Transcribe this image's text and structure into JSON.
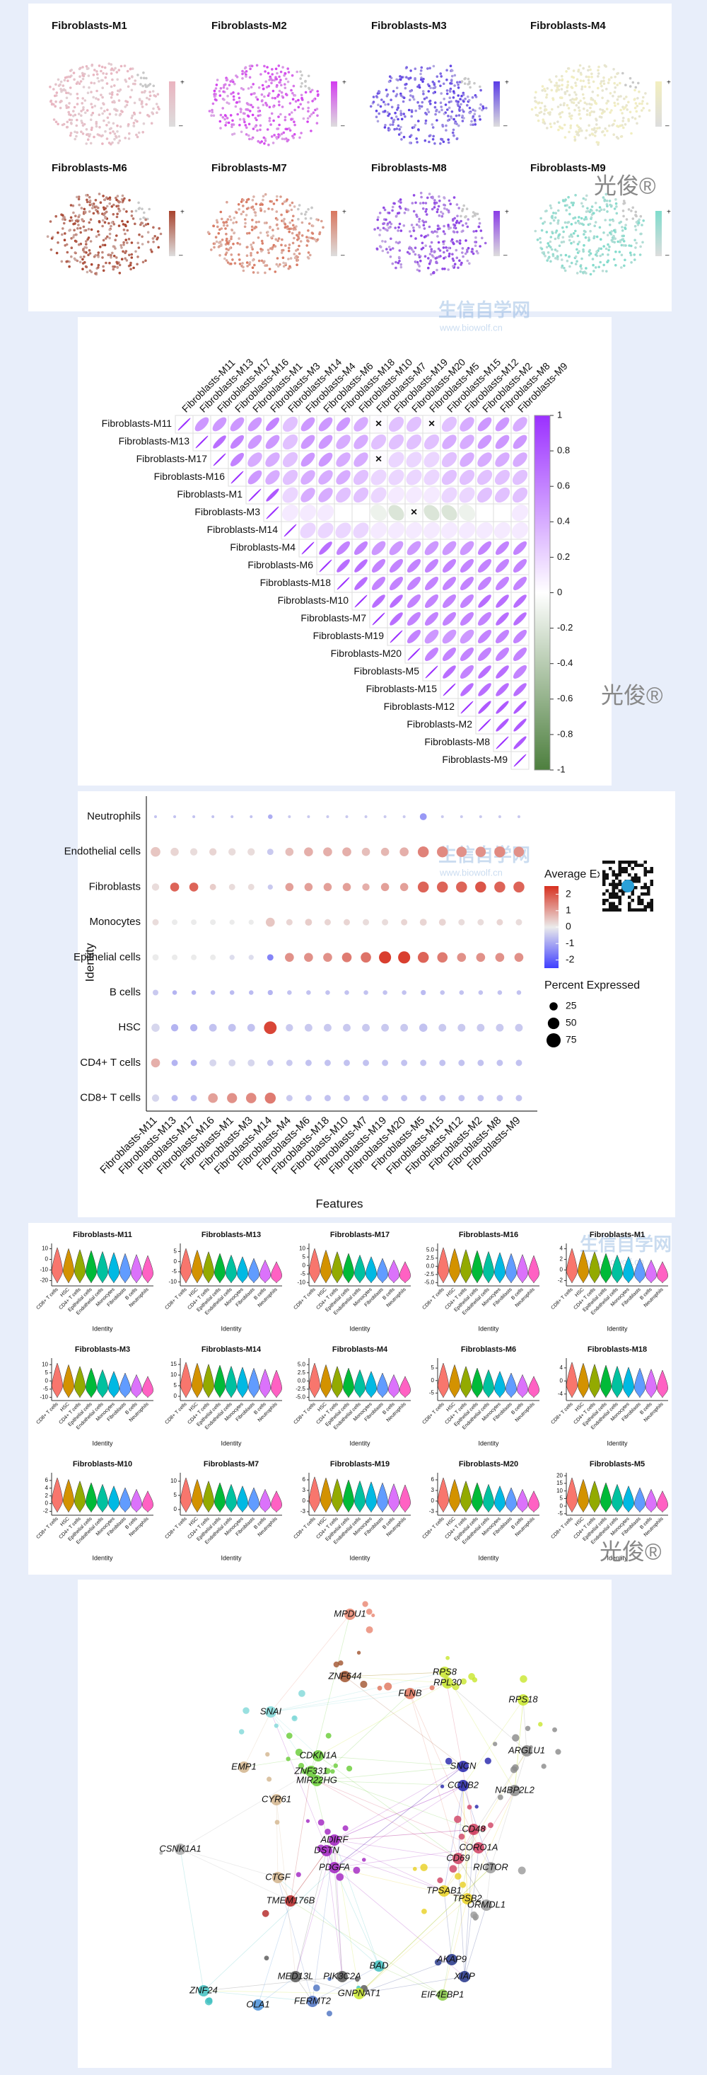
{
  "tsne": {
    "titles": [
      "Fibroblasts-M1",
      "Fibroblasts-M2",
      "Fibroblasts-M3",
      "Fibroblasts-M4",
      "Fibroblasts-M6",
      "Fibroblasts-M7",
      "Fibroblasts-M8",
      "Fibroblasts-M9"
    ],
    "colors": [
      "#eab3bf",
      "#d33cf0",
      "#5a3ce6",
      "#f3efbf",
      "#a8432e",
      "#d9765e",
      "#8a3ce6",
      "#7fdccc"
    ],
    "plus": "+",
    "minus": "–"
  },
  "correlation": {
    "labels": [
      "Fibroblasts-M11",
      "Fibroblasts-M13",
      "Fibroblasts-M17",
      "Fibroblasts-M16",
      "Fibroblasts-M1",
      "Fibroblasts-M3",
      "Fibroblasts-M14",
      "Fibroblasts-M4",
      "Fibroblasts-M6",
      "Fibroblasts-M18",
      "Fibroblasts-M10",
      "Fibroblasts-M7",
      "Fibroblasts-M19",
      "Fibroblasts-M20",
      "Fibroblasts-M5",
      "Fibroblasts-M15",
      "Fibroblasts-M12",
      "Fibroblasts-M2",
      "Fibroblasts-M8",
      "Fibroblasts-M9"
    ],
    "values": [
      [
        1,
        0.5,
        0.5,
        0.5,
        0.5,
        0.6,
        0.3,
        0.5,
        0.5,
        0.5,
        0.4,
        0.02,
        0.3,
        0.3,
        0.02,
        0.3,
        0.4,
        0.5,
        0.5,
        0.4
      ],
      [
        1,
        0.7,
        0.6,
        0.5,
        0.5,
        0.3,
        0.5,
        0.5,
        0.4,
        0.4,
        0.3,
        0.3,
        0.3,
        0.3,
        0.4,
        0.4,
        0.5,
        0.5,
        0.5
      ],
      [
        1,
        0.6,
        0.4,
        0.4,
        0.3,
        0.5,
        0.5,
        0.4,
        0.4,
        0.02,
        0.2,
        0.2,
        0.2,
        0.3,
        0.4,
        0.4,
        0.4,
        0.4
      ],
      [
        1,
        0.5,
        0.4,
        0.3,
        0.4,
        0.4,
        0.4,
        0.3,
        0.2,
        0.2,
        0.2,
        0.2,
        0.3,
        0.3,
        0.3,
        0.3,
        0.3
      ],
      [
        1,
        0.8,
        0.2,
        0.4,
        0.4,
        0.3,
        0.3,
        0.2,
        0.1,
        0.1,
        0.1,
        0.2,
        0.2,
        0.3,
        0.3,
        0.3
      ],
      [
        1,
        0.1,
        0.1,
        0.1,
        0,
        0,
        -0.1,
        -0.2,
        -0.02,
        -0.2,
        -0.2,
        -0.1,
        0,
        0,
        0.1
      ],
      [
        1,
        0.2,
        0.2,
        0.2,
        0.2,
        0.1,
        0.1,
        0.1,
        0.1,
        0.1,
        0.1,
        0.1,
        0.1,
        0.1
      ],
      [
        1,
        0.7,
        0.6,
        0.6,
        0.5,
        0.5,
        0.5,
        0.5,
        0.5,
        0.5,
        0.6,
        0.6,
        0.6
      ],
      [
        1,
        0.7,
        0.7,
        0.6,
        0.6,
        0.6,
        0.6,
        0.6,
        0.6,
        0.6,
        0.6,
        0.6
      ],
      [
        1,
        0.7,
        0.6,
        0.6,
        0.6,
        0.6,
        0.6,
        0.6,
        0.6,
        0.6,
        0.6
      ],
      [
        1,
        0.7,
        0.7,
        0.6,
        0.6,
        0.6,
        0.6,
        0.7,
        0.7,
        0.7
      ],
      [
        1,
        0.7,
        0.6,
        0.6,
        0.6,
        0.6,
        0.6,
        0.7,
        0.7
      ],
      [
        1,
        0.6,
        0.5,
        0.5,
        0.5,
        0.6,
        0.6,
        0.6
      ],
      [
        1,
        0.6,
        0.6,
        0.6,
        0.6,
        0.6,
        0.6
      ],
      [
        1,
        0.7,
        0.6,
        0.7,
        0.7,
        0.6
      ],
      [
        1,
        0.7,
        0.7,
        0.7,
        0.7
      ],
      [
        1,
        0.8,
        0.8,
        0.8
      ],
      [
        1,
        0.8,
        0.8
      ],
      [
        1,
        0.8
      ],
      [
        1
      ]
    ],
    "insignificant": [
      [
        0,
        11
      ],
      [
        0,
        14
      ],
      [
        2,
        11
      ],
      [
        5,
        13
      ]
    ],
    "cross": "×",
    "positive_color": "#9b30ff",
    "negative_color": "#4d7f3e",
    "colorbar_lim": [
      -1,
      1
    ],
    "colorbar_ticks": [
      1,
      0.8,
      0.6,
      0.4,
      0.2,
      0,
      -0.2,
      -0.4,
      -0.6,
      -0.8,
      -1
    ]
  },
  "dotplot": {
    "rows": [
      "Neutrophils",
      "Endothelial cells",
      "Fibroblasts",
      "Monocytes",
      "Epithelial cells",
      "B cells",
      "HSC",
      "CD4+ T cells",
      "CD8+ T cells"
    ],
    "features": [
      "Fibroblasts-M11",
      "Fibroblasts-M13",
      "Fibroblasts-M17",
      "Fibroblasts-M16",
      "Fibroblasts-M1",
      "Fibroblasts-M3",
      "Fibroblasts-M14",
      "Fibroblasts-M4",
      "Fibroblasts-M6",
      "Fibroblasts-M18",
      "Fibroblasts-M10",
      "Fibroblasts-M7",
      "Fibroblasts-M19",
      "Fibroblasts-M20",
      "Fibroblasts-M5",
      "Fibroblasts-M15",
      "Fibroblasts-M12",
      "Fibroblasts-M2",
      "Fibroblasts-M8",
      "Fibroblasts-M9"
    ],
    "avg": [
      [
        -0.6,
        -0.6,
        -0.6,
        -0.6,
        -0.6,
        -0.6,
        -0.9,
        -0.5,
        -0.5,
        -0.5,
        -0.5,
        -0.5,
        -0.5,
        -0.5,
        -1.2,
        -0.5,
        -0.5,
        -0.5,
        -0.5,
        -0.5
      ],
      [
        0.5,
        0.3,
        0.2,
        0.3,
        0.2,
        0.2,
        -0.5,
        0.6,
        0.8,
        0.8,
        0.8,
        0.6,
        0.7,
        0.8,
        1.4,
        1.3,
        1.2,
        1.2,
        1.3,
        1.2
      ],
      [
        0.2,
        1.8,
        1.8,
        0.4,
        0.2,
        0.2,
        -0.5,
        1,
        1,
        1,
        1,
        0.8,
        1,
        1,
        1.8,
        1.8,
        1.8,
        2,
        1.8,
        1.8
      ],
      [
        0.2,
        0,
        0,
        0,
        0,
        0,
        0.5,
        0.3,
        0.4,
        0.3,
        0.3,
        0.2,
        0.2,
        0.3,
        0.3,
        0.3,
        0.2,
        0.2,
        0.3,
        0.2
      ],
      [
        0,
        0,
        0,
        0,
        -0.2,
        -0.2,
        -1.5,
        1.2,
        1.2,
        1.2,
        1.5,
        1.6,
        2.3,
        2.3,
        1.8,
        1.5,
        1.2,
        1.2,
        1.2,
        1.2
      ],
      [
        -0.5,
        -0.8,
        -0.8,
        -0.7,
        -0.7,
        -0.7,
        -0.8,
        -0.6,
        -0.6,
        -0.6,
        -0.6,
        -0.6,
        -0.6,
        -0.6,
        -0.7,
        -0.6,
        -0.6,
        -0.6,
        -0.6,
        -0.6
      ],
      [
        -0.3,
        -0.8,
        -0.8,
        -0.6,
        -0.6,
        -0.6,
        2.2,
        -0.5,
        -0.5,
        -0.5,
        -0.5,
        -0.5,
        -0.5,
        -0.5,
        -0.6,
        -0.5,
        -0.5,
        -0.5,
        -0.5,
        -0.5
      ],
      [
        0.8,
        -0.8,
        -0.8,
        -0.3,
        -0.3,
        -0.3,
        -0.5,
        -0.5,
        -0.6,
        -0.6,
        -0.6,
        -0.6,
        -0.6,
        -0.6,
        -0.6,
        -0.6,
        -0.6,
        -0.6,
        -0.6,
        -0.6
      ],
      [
        -0.3,
        -0.7,
        -0.7,
        1,
        1.2,
        1.3,
        1.5,
        -0.5,
        -0.6,
        -0.6,
        -0.6,
        -0.6,
        -0.6,
        -0.6,
        -0.6,
        -0.6,
        -0.6,
        -0.6,
        -0.6,
        -0.6
      ]
    ],
    "pct": [
      [
        3,
        3,
        3,
        3,
        3,
        3,
        8,
        3,
        3,
        3,
        3,
        3,
        3,
        3,
        18,
        3,
        3,
        3,
        3,
        3
      ],
      [
        35,
        25,
        20,
        20,
        20,
        20,
        15,
        25,
        30,
        30,
        30,
        25,
        25,
        30,
        45,
        45,
        40,
        40,
        45,
        40
      ],
      [
        20,
        30,
        30,
        15,
        15,
        15,
        10,
        25,
        25,
        25,
        25,
        20,
        25,
        25,
        45,
        45,
        45,
        45,
        45,
        45
      ],
      [
        15,
        12,
        12,
        12,
        10,
        10,
        30,
        15,
        18,
        15,
        15,
        15,
        15,
        15,
        18,
        18,
        15,
        15,
        15,
        15
      ],
      [
        15,
        12,
        12,
        12,
        10,
        10,
        15,
        30,
        30,
        30,
        35,
        40,
        55,
        55,
        45,
        40,
        30,
        30,
        30,
        30
      ],
      [
        12,
        8,
        8,
        8,
        8,
        8,
        10,
        8,
        8,
        8,
        8,
        8,
        8,
        8,
        10,
        8,
        8,
        8,
        8,
        8
      ],
      [
        25,
        20,
        20,
        22,
        22,
        22,
        60,
        20,
        22,
        22,
        22,
        22,
        22,
        22,
        25,
        22,
        22,
        22,
        22,
        22
      ],
      [
        30,
        15,
        15,
        18,
        18,
        18,
        15,
        15,
        15,
        15,
        15,
        15,
        15,
        15,
        15,
        15,
        15,
        15,
        15,
        15
      ],
      [
        20,
        15,
        15,
        35,
        38,
        40,
        45,
        15,
        15,
        15,
        15,
        15,
        15,
        15,
        15,
        15,
        15,
        15,
        15,
        15
      ]
    ],
    "ylabel": "Identity",
    "xlabel": "Features",
    "color_title": "Average Expression",
    "color_lim": [
      -2.5,
      2.5
    ],
    "color_ticks": [
      2,
      1,
      0,
      -1,
      -2
    ],
    "high_color": "#d7301f",
    "low_color": "#3f3fff",
    "size_title": "Percent Expressed",
    "size_ticks": [
      25,
      50,
      75
    ]
  },
  "violins": {
    "identities": [
      "CD8+ T cells",
      "HSC",
      "CD4+ T cells",
      "Epithelial cells",
      "Endothelial cells",
      "Monocytes",
      "Fibroblasts",
      "B cells",
      "Neutrophils"
    ],
    "colors": [
      "#f8766d",
      "#d39200",
      "#93aa00",
      "#00ba38",
      "#00c19f",
      "#00b9e3",
      "#619cff",
      "#db72fb",
      "#ff61c3"
    ],
    "xlabel": "Identity",
    "plots": [
      {
        "title": "Fibroblasts-M11",
        "ylim": [
          -25,
          15
        ],
        "yticks": [
          10,
          0,
          -10,
          -20
        ]
      },
      {
        "title": "Fibroblasts-M13",
        "ylim": [
          -12,
          9
        ],
        "yticks": [
          5,
          0,
          -5,
          -10
        ]
      },
      {
        "title": "Fibroblasts-M17",
        "ylim": [
          -12,
          13
        ],
        "yticks": [
          10,
          5,
          0,
          -5,
          -10
        ]
      },
      {
        "title": "Fibroblasts-M16",
        "ylim": [
          -6,
          7
        ],
        "yticks": [
          {
            "value": 5,
            "label": "5.0"
          },
          {
            "value": 2.5,
            "label": "2.5"
          },
          {
            "value": 0,
            "label": "0.0"
          },
          {
            "value": -2.5,
            "label": "-2.5"
          },
          {
            "value": -5,
            "label": "-5.0"
          }
        ]
      },
      {
        "title": "Fibroblasts-M1",
        "ylim": [
          -3,
          5
        ],
        "yticks": [
          4,
          2,
          0,
          -2
        ]
      },
      {
        "title": "Fibroblasts-M3",
        "ylim": [
          -12,
          14
        ],
        "yticks": [
          10,
          5,
          0,
          -5,
          -10
        ]
      },
      {
        "title": "Fibroblasts-M14",
        "ylim": [
          -2,
          18
        ],
        "yticks": [
          15,
          10,
          5,
          0
        ]
      },
      {
        "title": "Fibroblasts-M4",
        "ylim": [
          -6,
          7
        ],
        "yticks": [
          {
            "value": 5,
            "label": "5.0"
          },
          {
            "value": 2.5,
            "label": "2.5"
          },
          {
            "value": 0,
            "label": "0.0"
          },
          {
            "value": -2.5,
            "label": "-2.5"
          },
          {
            "value": -5,
            "label": "-5.0"
          }
        ]
      },
      {
        "title": "Fibroblasts-M6",
        "ylim": [
          -8,
          9
        ],
        "yticks": [
          5,
          0,
          -5
        ]
      },
      {
        "title": "Fibroblasts-M18",
        "ylim": [
          -6,
          7
        ],
        "yticks": [
          4,
          0,
          -4
        ]
      },
      {
        "title": "Fibroblasts-M10",
        "ylim": [
          -3,
          8
        ],
        "yticks": [
          6,
          4,
          2,
          0,
          -2
        ]
      },
      {
        "title": "Fibroblasts-M7",
        "ylim": [
          -2,
          13
        ],
        "yticks": [
          10,
          5,
          0
        ]
      },
      {
        "title": "Fibroblasts-M19",
        "ylim": [
          -4,
          8
        ],
        "yticks": [
          6,
          3,
          0,
          -3
        ]
      },
      {
        "title": "Fibroblasts-M20",
        "ylim": [
          -4,
          8
        ],
        "yticks": [
          6,
          3,
          0,
          -3
        ]
      },
      {
        "title": "Fibroblasts-M5",
        "ylim": [
          -6,
          22
        ],
        "yticks": [
          20,
          15,
          10,
          5,
          0,
          -5
        ]
      }
    ]
  },
  "network": {
    "genes": [
      "MPDU1",
      "ZNF644",
      "RPS8",
      "RPL30",
      "FLNB",
      "RPS18",
      "SNAI",
      "CDKN1A",
      "SNCN",
      "ARGLU1",
      "ZNF331",
      "MIR22HG",
      "CCNB2",
      "EMP1",
      "N4BP2L2",
      "CYR61",
      "CD48",
      "CSNK1A1",
      "ADIRF",
      "CORO1A",
      "DSTN",
      "CD69",
      "RICTOR",
      "PDGFA",
      "CTGF",
      "TPSAB1",
      "TPSB2",
      "TMEM176B",
      "ORMDL1",
      "MED13L",
      "PIK3C2A",
      "BAD",
      "AKAP9",
      "XIAP",
      "ZNF24",
      "GNPNAT1",
      "EIF4EBP1",
      "OLA1",
      "FERMT2"
    ]
  },
  "watermarks": {
    "brand": "光俊®",
    "site": "生信自学网",
    "url": "www.biowolf.cn"
  }
}
